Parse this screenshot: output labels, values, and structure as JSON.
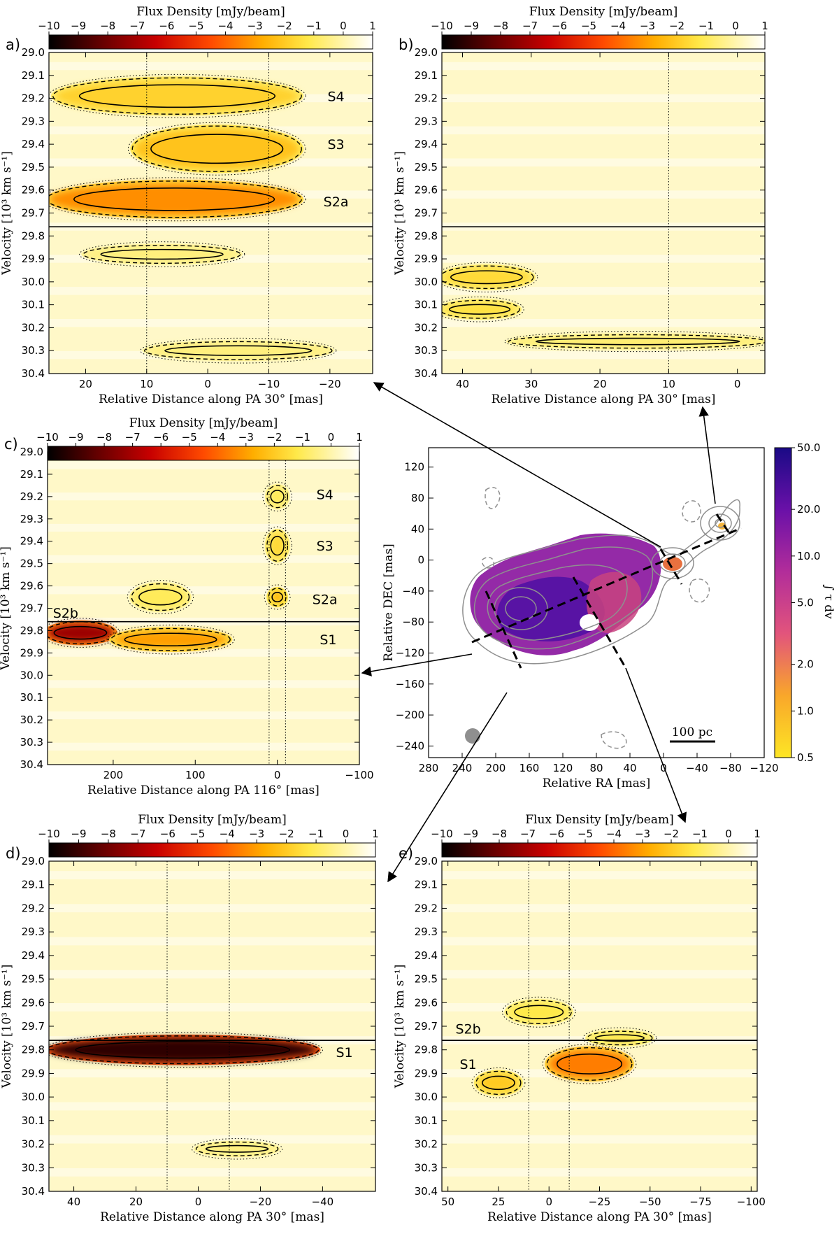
{
  "figure": {
    "colorbar_title": "Flux Density [mJy/beam]",
    "velocity_label": "Velocity [10³ km s⁻¹]",
    "map_colorbar_label": "∫ τ dv",
    "scalebar_label": "100 pc"
  },
  "chart_data": [
    {
      "id": "a",
      "type": "heatmap",
      "panel_label": "a)",
      "xlabel": "Relative Distance along PA 30° [mas]",
      "ylabel": "Velocity [10³ km s⁻¹]",
      "xlim": [
        26,
        -27
      ],
      "ylim": [
        29.0,
        30.4
      ],
      "xticks": [
        20,
        10,
        0,
        -10,
        -20
      ],
      "yticks": [
        29.0,
        29.1,
        29.2,
        29.3,
        29.4,
        29.5,
        29.6,
        29.7,
        29.8,
        29.9,
        30.0,
        30.1,
        30.2,
        30.3,
        30.4
      ],
      "colorbar": {
        "label": "Flux Density [mJy/beam]",
        "range": [
          -10,
          1
        ],
        "ticks": [
          -10,
          -9,
          -8,
          -7,
          -6,
          -5,
          -4,
          -3,
          -2,
          -1,
          0,
          1
        ]
      },
      "systemic_velocity": 29.76,
      "vlines": [
        10,
        -10
      ],
      "components": [
        {
          "name": "S4",
          "x": -21,
          "v": 29.19,
          "peak": -2.0
        },
        {
          "name": "S3",
          "x": -21,
          "v": 29.4,
          "peak": -2.5
        },
        {
          "name": "S2a",
          "x": -21,
          "v": 29.65,
          "peak": -3.5
        }
      ],
      "features": [
        {
          "x": [
            25,
            -15
          ],
          "v": 29.19,
          "dv": 0.07,
          "peak": -1.8
        },
        {
          "x": [
            12,
            -15
          ],
          "v": 29.42,
          "dv": 0.09,
          "peak": -2.2
        },
        {
          "x": [
            26,
            -15
          ],
          "v": 29.64,
          "dv": 0.07,
          "peak": -3.3
        },
        {
          "x": [
            20,
            -5
          ],
          "v": 29.88,
          "dv": 0.03,
          "peak": -0.6
        },
        {
          "x": [
            10,
            -20
          ],
          "v": 30.3,
          "dv": 0.03,
          "peak": -0.6
        }
      ]
    },
    {
      "id": "b",
      "type": "heatmap",
      "panel_label": "b)",
      "xlabel": "Relative Distance along PA 30° [mas]",
      "ylabel": "Velocity [10³ km s⁻¹]",
      "xlim": [
        43,
        -4
      ],
      "ylim": [
        29.0,
        30.4
      ],
      "xticks": [
        40,
        30,
        20,
        10,
        0
      ],
      "yticks": [
        29.0,
        29.1,
        29.2,
        29.3,
        29.4,
        29.5,
        29.6,
        29.7,
        29.8,
        29.9,
        30.0,
        30.1,
        30.2,
        30.3,
        30.4
      ],
      "colorbar": {
        "label": "Flux Density [mJy/beam]",
        "range": [
          -10,
          1
        ],
        "ticks": [
          -10,
          -9,
          -8,
          -7,
          -6,
          -5,
          -4,
          -3,
          -2,
          -1,
          0,
          1
        ]
      },
      "systemic_velocity": 29.76,
      "vlines": [
        10
      ],
      "components": [],
      "features": [
        {
          "x": [
            43,
            30
          ],
          "v": 29.98,
          "dv": 0.04,
          "peak": -1.6
        },
        {
          "x": [
            43,
            32
          ],
          "v": 30.12,
          "dv": 0.03,
          "peak": -1.4
        },
        {
          "x": [
            33,
            -4
          ],
          "v": 30.26,
          "dv": 0.02,
          "peak": -0.8
        }
      ]
    },
    {
      "id": "c",
      "type": "heatmap",
      "panel_label": "c)",
      "xlabel": "Relative Distance along PA 116° [mas]",
      "ylabel": "Velocity [10³ km s⁻¹]",
      "xlim": [
        280,
        -100
      ],
      "ylim": [
        29.0,
        30.4
      ],
      "xticks": [
        200,
        100,
        0,
        -100
      ],
      "yticks": [
        29.0,
        29.1,
        29.2,
        29.3,
        29.4,
        29.5,
        29.6,
        29.7,
        29.8,
        29.9,
        30.0,
        30.1,
        30.2,
        30.3,
        30.4
      ],
      "colorbar": {
        "label": "Flux Density [mJy/beam]",
        "range": [
          -10,
          1
        ],
        "ticks": [
          -10,
          -9,
          -8,
          -7,
          -6,
          -5,
          -4,
          -3,
          -2,
          -1,
          0,
          1
        ]
      },
      "systemic_velocity": 29.76,
      "vlines": [
        10,
        -10
      ],
      "components": [
        {
          "name": "S4",
          "x": -58,
          "v": 29.19,
          "peak": -1.0
        },
        {
          "name": "S3",
          "x": -58,
          "v": 29.42,
          "peak": -1.5
        },
        {
          "name": "S2a",
          "x": -58,
          "v": 29.66,
          "peak": -2.5
        },
        {
          "name": "S2b",
          "x": 258,
          "v": 29.72,
          "peak": -1.0
        },
        {
          "name": "S1",
          "x": -62,
          "v": 29.84,
          "peak": -7.0
        }
      ],
      "features": [
        {
          "x": [
            280,
            200
          ],
          "v": 29.81,
          "dv": 0.04,
          "peak": -7.2
        },
        {
          "x": [
            200,
            60
          ],
          "v": 29.84,
          "dv": 0.04,
          "peak": -3.0
        },
        {
          "x": [
            10,
            -10
          ],
          "v": 29.42,
          "dv": 0.06,
          "peak": -1.6
        },
        {
          "x": [
            8,
            -8
          ],
          "v": 29.65,
          "dv": 0.03,
          "peak": -2.4
        },
        {
          "x": [
            10,
            -10
          ],
          "v": 29.2,
          "dv": 0.04,
          "peak": -1.0
        },
        {
          "x": [
            175,
            110
          ],
          "v": 29.65,
          "dv": 0.05,
          "peak": -1.0
        }
      ]
    },
    {
      "id": "map",
      "type": "image",
      "xlabel": "Relative RA [mas]",
      "ylabel": "Relative DEC [mas]",
      "xlim": [
        280,
        -120
      ],
      "ylim": [
        -255,
        145
      ],
      "xticks": [
        280,
        240,
        200,
        160,
        120,
        80,
        40,
        0,
        -40,
        -80,
        -120
      ],
      "yticks": [
        120,
        80,
        40,
        0,
        -40,
        -80,
        -120,
        -160,
        -200,
        -240
      ],
      "colorbar": {
        "label": "∫ τ dv",
        "scale": "log",
        "range": [
          0.5,
          50.0
        ],
        "ticks": [
          50.0,
          20.0,
          10.0,
          5.0,
          2.0,
          1.0,
          0.5
        ]
      },
      "scalebar": "100 pc",
      "cuts": [
        {
          "panel": "a",
          "from": [
            30,
            -17
          ],
          "to": [
            -10,
            53
          ]
        },
        {
          "panel": "b",
          "from": [
            -60,
            30
          ],
          "to": [
            -90,
            45
          ]
        },
        {
          "panel": "c",
          "from": [
            250,
            -125
          ],
          "to": [
            -90,
            45
          ]
        },
        {
          "panel": "d",
          "from": [
            220,
            -60
          ],
          "to": [
            185,
            -150
          ]
        },
        {
          "panel": "e",
          "from": [
            130,
            -20
          ],
          "to": [
            60,
            -135
          ]
        }
      ]
    },
    {
      "id": "d",
      "type": "heatmap",
      "panel_label": "d)",
      "xlabel": "Relative Distance along PA 30° [mas]",
      "ylabel": "Velocity [10³ km s⁻¹]",
      "xlim": [
        48,
        -57
      ],
      "ylim": [
        29.0,
        30.4
      ],
      "xticks": [
        40,
        20,
        0,
        -20,
        -40
      ],
      "yticks": [
        29.0,
        29.1,
        29.2,
        29.3,
        29.4,
        29.5,
        29.6,
        29.7,
        29.8,
        29.9,
        30.0,
        30.1,
        30.2,
        30.3,
        30.4
      ],
      "colorbar": {
        "label": "Flux Density [mJy/beam]",
        "range": [
          -10,
          1
        ],
        "ticks": [
          -10,
          -9,
          -8,
          -7,
          -6,
          -5,
          -4,
          -3,
          -2,
          -1,
          0,
          1
        ]
      },
      "systemic_velocity": 29.76,
      "vlines": [
        10,
        -10
      ],
      "components": [
        {
          "name": "S1",
          "x": -47,
          "v": 29.81,
          "peak": -9.0
        }
      ],
      "features": [
        {
          "x": [
            48,
            -38
          ],
          "v": 29.8,
          "dv": 0.05,
          "peak": -9.2
        },
        {
          "x": [
            0,
            -25
          ],
          "v": 30.22,
          "dv": 0.02,
          "peak": -0.6
        }
      ]
    },
    {
      "id": "e",
      "type": "heatmap",
      "panel_label": "e)",
      "xlabel": "Relative Distance along PA 30° [mas]",
      "ylabel": "Velocity [10³ km s⁻¹]",
      "xlim": [
        53,
        -103
      ],
      "ylim": [
        29.0,
        30.4
      ],
      "xticks": [
        50,
        25,
        0,
        -25,
        -50,
        -75,
        -100
      ],
      "yticks": [
        29.0,
        29.1,
        29.2,
        29.3,
        29.4,
        29.5,
        29.6,
        29.7,
        29.8,
        29.9,
        30.0,
        30.1,
        30.2,
        30.3,
        30.4
      ],
      "colorbar": {
        "label": "Flux Density [mJy/beam]",
        "range": [
          -10,
          1
        ],
        "ticks": [
          -10,
          -9,
          -8,
          -7,
          -6,
          -5,
          -4,
          -3,
          -2,
          -1,
          0,
          1
        ]
      },
      "systemic_velocity": 29.76,
      "vlines": [
        10,
        -10
      ],
      "components": [
        {
          "name": "S2b",
          "x": 40,
          "v": 29.71,
          "peak": -1.0
        },
        {
          "name": "S1",
          "x": 40,
          "v": 29.86,
          "peak": -3.5
        }
      ],
      "features": [
        {
          "x": [
            0,
            -40
          ],
          "v": 29.86,
          "dv": 0.06,
          "peak": -3.6
        },
        {
          "x": [
            35,
            15
          ],
          "v": 29.94,
          "dv": 0.04,
          "peak": -2.0
        },
        {
          "x": [
            20,
            -10
          ],
          "v": 29.64,
          "dv": 0.04,
          "peak": -1.2
        },
        {
          "x": [
            -20,
            -50
          ],
          "v": 29.75,
          "dv": 0.02,
          "peak": -1.2
        }
      ]
    }
  ]
}
